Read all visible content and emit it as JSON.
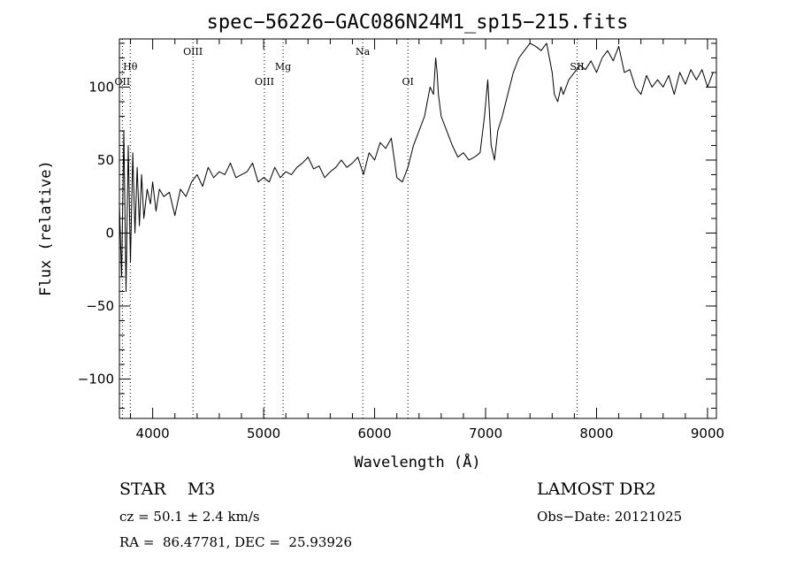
{
  "chart_data": {
    "type": "line",
    "title": "spec−56226−GAC086N24M1_sp15−215.fits",
    "xlabel": "Wavelength (Å)",
    "ylabel": "Flux (relative)",
    "xlim": [
      3700,
      9080
    ],
    "ylim": [
      -127,
      133
    ],
    "x_ticks": [
      4000,
      5000,
      6000,
      7000,
      8000,
      9000
    ],
    "x_tick_labels": [
      "4000",
      "5000",
      "6000",
      "7000",
      "8000",
      "9000"
    ],
    "y_ticks": [
      -100,
      -50,
      0,
      50,
      100
    ],
    "y_tick_labels": [
      "−100",
      "−50",
      "0",
      "50",
      "100"
    ],
    "spectral_lines": [
      {
        "name": "OII",
        "wavelength": 3727,
        "row": "lower"
      },
      {
        "name": "Hθ",
        "wavelength": 3798,
        "row": "upper"
      },
      {
        "name": "OIII",
        "wavelength": 4363,
        "row": "top"
      },
      {
        "name": "OIII",
        "wavelength": 5007,
        "row": "lower"
      },
      {
        "name": "Mg",
        "wavelength": 5175,
        "row": "upper"
      },
      {
        "name": "Na",
        "wavelength": 5893,
        "row": "top"
      },
      {
        "name": "OI",
        "wavelength": 6300,
        "row": "lower"
      },
      {
        "name": "SII",
        "wavelength": 7825,
        "row": "upper"
      }
    ],
    "series": [
      {
        "color": "#000000",
        "x": [
          3700,
          3720,
          3740,
          3760,
          3780,
          3800,
          3820,
          3840,
          3860,
          3880,
          3900,
          3920,
          3950,
          3980,
          4000,
          4030,
          4060,
          4100,
          4150,
          4200,
          4250,
          4300,
          4350,
          4400,
          4450,
          4500,
          4550,
          4600,
          4650,
          4700,
          4750,
          4800,
          4850,
          4900,
          4950,
          5000,
          5050,
          5100,
          5150,
          5200,
          5250,
          5300,
          5350,
          5400,
          5450,
          5500,
          5550,
          5600,
          5650,
          5700,
          5750,
          5800,
          5850,
          5900,
          5950,
          6000,
          6050,
          6100,
          6150,
          6200,
          6250,
          6300,
          6350,
          6400,
          6450,
          6500,
          6530,
          6550,
          6563,
          6575,
          6600,
          6650,
          6700,
          6750,
          6800,
          6850,
          6900,
          6950,
          6990,
          7020,
          7050,
          7080,
          7110,
          7150,
          7200,
          7250,
          7300,
          7350,
          7400,
          7450,
          7500,
          7550,
          7600,
          7620,
          7650,
          7680,
          7700,
          7750,
          7800,
          7850,
          7900,
          7950,
          8000,
          8050,
          8100,
          8150,
          8200,
          8250,
          8300,
          8350,
          8400,
          8450,
          8500,
          8550,
          8600,
          8650,
          8700,
          8750,
          8800,
          8850,
          8900,
          8950,
          9000,
          9050
        ],
        "y": [
          20,
          -30,
          70,
          -40,
          60,
          -20,
          55,
          0,
          45,
          5,
          40,
          10,
          30,
          20,
          35,
          15,
          30,
          25,
          28,
          12,
          30,
          25,
          35,
          40,
          32,
          45,
          38,
          42,
          40,
          48,
          38,
          40,
          42,
          48,
          35,
          38,
          35,
          45,
          38,
          42,
          40,
          45,
          48,
          52,
          44,
          46,
          38,
          42,
          45,
          50,
          45,
          48,
          52,
          40,
          55,
          50,
          62,
          58,
          65,
          38,
          35,
          45,
          60,
          70,
          80,
          100,
          95,
          120,
          110,
          95,
          80,
          70,
          60,
          52,
          55,
          50,
          52,
          55,
          80,
          105,
          60,
          50,
          70,
          80,
          95,
          110,
          120,
          125,
          130,
          128,
          125,
          130,
          110,
          95,
          90,
          100,
          95,
          105,
          110,
          115,
          112,
          118,
          110,
          120,
          125,
          118,
          128,
          110,
          112,
          100,
          95,
          108,
          100,
          105,
          100,
          108,
          95,
          110,
          102,
          112,
          105,
          112,
          100,
          110
        ]
      }
    ]
  },
  "info": {
    "object_line": "STAR    M3",
    "survey": "LAMOST DR2",
    "velocity": "cz = 50.1 ± 2.4 km/s",
    "obs_date": "Obs−Date: 20121025",
    "coordinates": "RA =  86.47781, DEC =  25.93926"
  }
}
